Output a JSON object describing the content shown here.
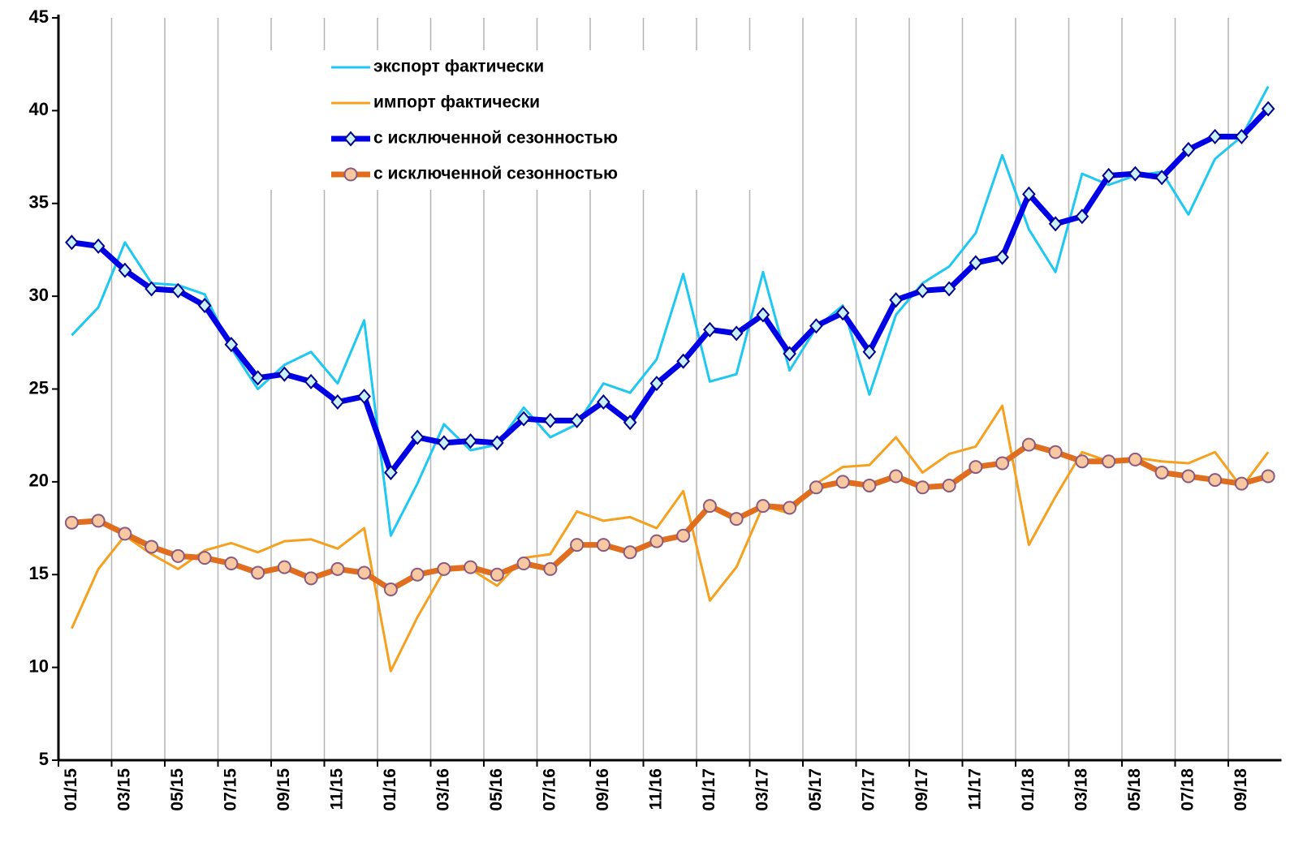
{
  "chart_data": {
    "type": "line",
    "categories": [
      "01/15",
      null,
      "03/15",
      null,
      "05/15",
      null,
      "07/15",
      null,
      "09/15",
      null,
      "11/15",
      null,
      "01/16",
      null,
      "03/16",
      null,
      "05/16",
      null,
      "07/16",
      null,
      "09/16",
      null,
      "11/16",
      null,
      "01/17",
      null,
      "03/17",
      null,
      "05/17",
      null,
      "07/17",
      null,
      "09/17",
      null,
      "11/17",
      null,
      "01/18",
      null,
      "03/18",
      null,
      "05/18",
      null,
      "07/18",
      null,
      "09/18",
      null
    ],
    "series": [
      {
        "name": "экспорт фактически",
        "color": "#1ec8f0",
        "width": 3,
        "marker": "none",
        "values": [
          27.9,
          29.4,
          32.9,
          30.7,
          30.6,
          30.1,
          27.2,
          25.0,
          26.3,
          27.0,
          25.3,
          28.7,
          17.1,
          19.9,
          23.1,
          21.7,
          22.0,
          24.0,
          22.4,
          23.1,
          25.3,
          24.8,
          26.6,
          31.2,
          25.4,
          25.8,
          31.3,
          26.0,
          28.3,
          29.5,
          24.7,
          29.0,
          30.7,
          31.6,
          33.4,
          37.6,
          33.6,
          31.3,
          36.6,
          36.0,
          36.5,
          36.7,
          34.4,
          37.4,
          38.6,
          41.3
        ]
      },
      {
        "name": "импорт фактически",
        "color": "#f5a01e",
        "width": 3,
        "marker": "none",
        "values": [
          12.1,
          15.3,
          17.1,
          16.1,
          15.3,
          16.3,
          16.7,
          16.2,
          16.8,
          16.9,
          16.4,
          17.5,
          9.8,
          12.7,
          15.2,
          15.3,
          14.4,
          15.9,
          16.1,
          18.4,
          17.9,
          18.1,
          17.5,
          19.5,
          13.6,
          15.4,
          18.7,
          18.3,
          19.9,
          20.8,
          20.9,
          22.4,
          20.5,
          21.5,
          21.9,
          24.1,
          16.6,
          19.2,
          21.6,
          21.1,
          21.3,
          21.1,
          21.0,
          21.6,
          19.7,
          21.6
        ]
      },
      {
        "name": "с исключенной сезонностью",
        "color": "#0000e6",
        "width": 7,
        "marker": "diamond",
        "marker_fill": "#c8f0ff",
        "marker_stroke": "#00008c",
        "values": [
          32.9,
          32.7,
          31.4,
          30.4,
          30.3,
          29.5,
          27.4,
          25.6,
          25.8,
          25.4,
          24.3,
          24.6,
          20.5,
          22.4,
          22.1,
          22.2,
          22.1,
          23.4,
          23.3,
          23.3,
          24.3,
          23.2,
          25.3,
          26.5,
          28.2,
          28.0,
          29.0,
          26.9,
          28.4,
          29.1,
          27.0,
          29.8,
          30.3,
          30.4,
          31.8,
          32.1,
          35.5,
          33.9,
          34.3,
          36.5,
          36.6,
          36.4,
          37.9,
          38.6,
          38.6,
          40.1
        ]
      },
      {
        "name": "с исключенной сезонностью",
        "color": "#e06e1e",
        "width": 7,
        "marker": "circle",
        "marker_fill": "#f8c8a0",
        "marker_stroke": "#8a5a80",
        "values": [
          17.8,
          17.9,
          17.2,
          16.5,
          16.0,
          15.9,
          15.6,
          15.1,
          15.4,
          14.8,
          15.3,
          15.1,
          14.2,
          15.0,
          15.3,
          15.4,
          15.0,
          15.6,
          15.3,
          16.6,
          16.6,
          16.2,
          16.8,
          17.1,
          18.7,
          18.0,
          18.7,
          18.6,
          19.7,
          20.0,
          19.8,
          20.3,
          19.7,
          19.8,
          20.8,
          21.0,
          22.0,
          21.6,
          21.1,
          21.1,
          21.2,
          20.5,
          20.3,
          20.1,
          19.9,
          20.3
        ]
      }
    ],
    "ylim": [
      5,
      45
    ],
    "yticks": [
      5,
      10,
      15,
      20,
      25,
      30,
      35,
      40,
      45
    ],
    "grid": "x",
    "legend": "top"
  }
}
